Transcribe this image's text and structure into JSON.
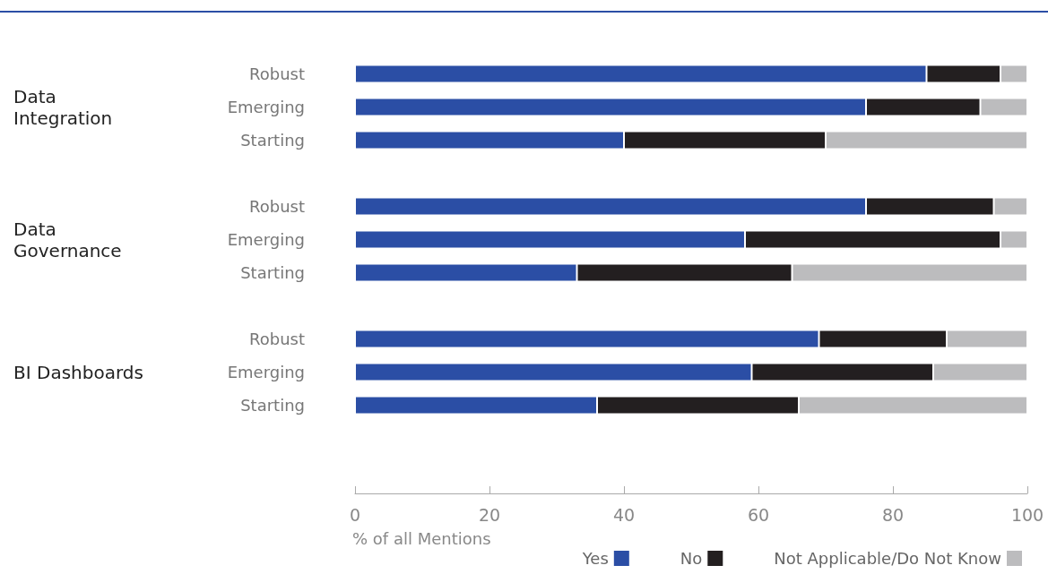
{
  "chart_data": {
    "type": "bar",
    "orientation": "horizontal",
    "stacked": true,
    "categories": [
      "Robust",
      "Emerging",
      "Starting",
      null,
      "Robust",
      "Emerging",
      "Starting",
      null,
      "Robust",
      "Emerging",
      "Starting"
    ],
    "series": [
      {
        "name": "Yes",
        "color": "#2b4ea5",
        "values": [
          85,
          76,
          40,
          null,
          76,
          58,
          33,
          null,
          69,
          59,
          36
        ]
      },
      {
        "name": "No",
        "color": "#231f20",
        "values": [
          11,
          17,
          30,
          null,
          19,
          38,
          32,
          null,
          19,
          27,
          30
        ]
      },
      {
        "name": "Not Applicable/Do Not Know",
        "color": "#bcbcbe",
        "values": [
          4,
          7,
          30,
          null,
          5,
          4,
          35,
          null,
          12,
          14,
          34
        ]
      }
    ],
    "xlim": [
      0,
      100
    ],
    "xticks": [
      0,
      20,
      40,
      60,
      80,
      100
    ],
    "xlabel": "% of all Mentions",
    "annotations": [
      "Data\nIntegration",
      "Data\nGovernance",
      "BI Dashboards"
    ],
    "grid": false,
    "legend": "bottom right"
  }
}
